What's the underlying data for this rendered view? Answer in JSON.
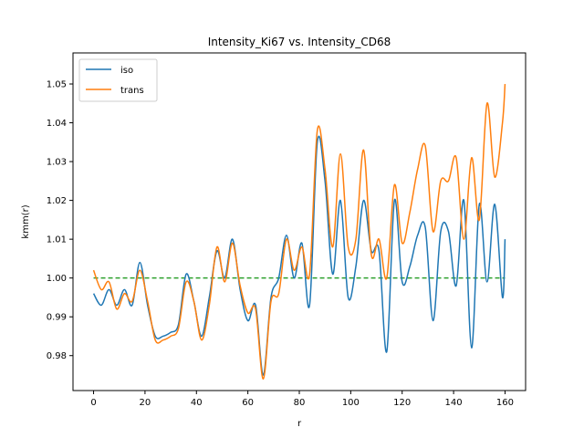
{
  "chart_data": {
    "type": "line",
    "title": "Intensity_Ki67 vs. Intensity_CD68",
    "xlabel": "r",
    "ylabel": "kmm(r)",
    "xlim": [
      -8,
      168
    ],
    "ylim": [
      0.971,
      1.058
    ],
    "xticks": [
      0,
      20,
      40,
      60,
      80,
      100,
      120,
      140,
      160
    ],
    "yticks": [
      0.98,
      0.99,
      1.0,
      1.01,
      1.02,
      1.03,
      1.04,
      1.05
    ],
    "ytick_labels": [
      "0.98",
      "0.99",
      "1.00",
      "1.01",
      "1.02",
      "1.03",
      "1.04",
      "1.05"
    ],
    "grid": false,
    "legend": "upper-left",
    "reference_line": {
      "y": 1.0,
      "color": "#2ca02c",
      "style": "dashed"
    },
    "series": [
      {
        "name": "iso",
        "color": "#1f77b4",
        "x": [
          0,
          3,
          6,
          9,
          12,
          15,
          18,
          21,
          24,
          27,
          30,
          33,
          36,
          39,
          42,
          45,
          48,
          51,
          54,
          57,
          60,
          63,
          66,
          69,
          72,
          75,
          78,
          81,
          84,
          87,
          90,
          93,
          96,
          99,
          102,
          105,
          108,
          111,
          114,
          117,
          120,
          123,
          126,
          129,
          132,
          135,
          138,
          141,
          144,
          147,
          150,
          153,
          156,
          159,
          160
        ],
        "y": [
          0.996,
          0.993,
          0.997,
          0.993,
          0.997,
          0.993,
          1.004,
          0.993,
          0.985,
          0.985,
          0.986,
          0.988,
          1.001,
          0.994,
          0.985,
          0.995,
          1.007,
          1.0,
          1.01,
          0.997,
          0.989,
          0.993,
          0.975,
          0.995,
          1.0,
          1.011,
          1.0,
          1.009,
          0.993,
          1.035,
          1.025,
          1.001,
          1.02,
          0.995,
          1.003,
          1.02,
          1.007,
          1.007,
          0.981,
          1.02,
          0.999,
          1.003,
          1.011,
          1.013,
          0.989,
          1.012,
          1.012,
          0.998,
          1.02,
          0.982,
          1.019,
          0.999,
          1.019,
          0.995,
          1.01
        ]
      },
      {
        "name": "trans",
        "color": "#ff7f0e",
        "x": [
          0,
          3,
          6,
          9,
          12,
          15,
          18,
          21,
          24,
          27,
          30,
          33,
          36,
          39,
          42,
          45,
          48,
          51,
          54,
          57,
          60,
          63,
          66,
          69,
          72,
          75,
          78,
          81,
          84,
          87,
          90,
          93,
          96,
          99,
          102,
          105,
          108,
          111,
          114,
          117,
          120,
          123,
          126,
          129,
          132,
          135,
          138,
          141,
          144,
          147,
          150,
          153,
          156,
          159,
          160
        ],
        "y": [
          1.002,
          0.997,
          0.999,
          0.992,
          0.996,
          0.994,
          1.002,
          0.994,
          0.984,
          0.984,
          0.985,
          0.987,
          0.999,
          0.994,
          0.984,
          0.993,
          1.008,
          0.999,
          1.009,
          0.998,
          0.991,
          0.992,
          0.974,
          0.994,
          0.996,
          1.01,
          1.002,
          1.008,
          1.001,
          1.038,
          1.028,
          1.008,
          1.032,
          1.008,
          1.01,
          1.033,
          1.006,
          1.01,
          1.0,
          1.024,
          1.009,
          1.017,
          1.028,
          1.034,
          1.012,
          1.025,
          1.025,
          1.031,
          1.01,
          1.031,
          1.015,
          1.045,
          1.026,
          1.04,
          1.05
        ]
      }
    ]
  }
}
